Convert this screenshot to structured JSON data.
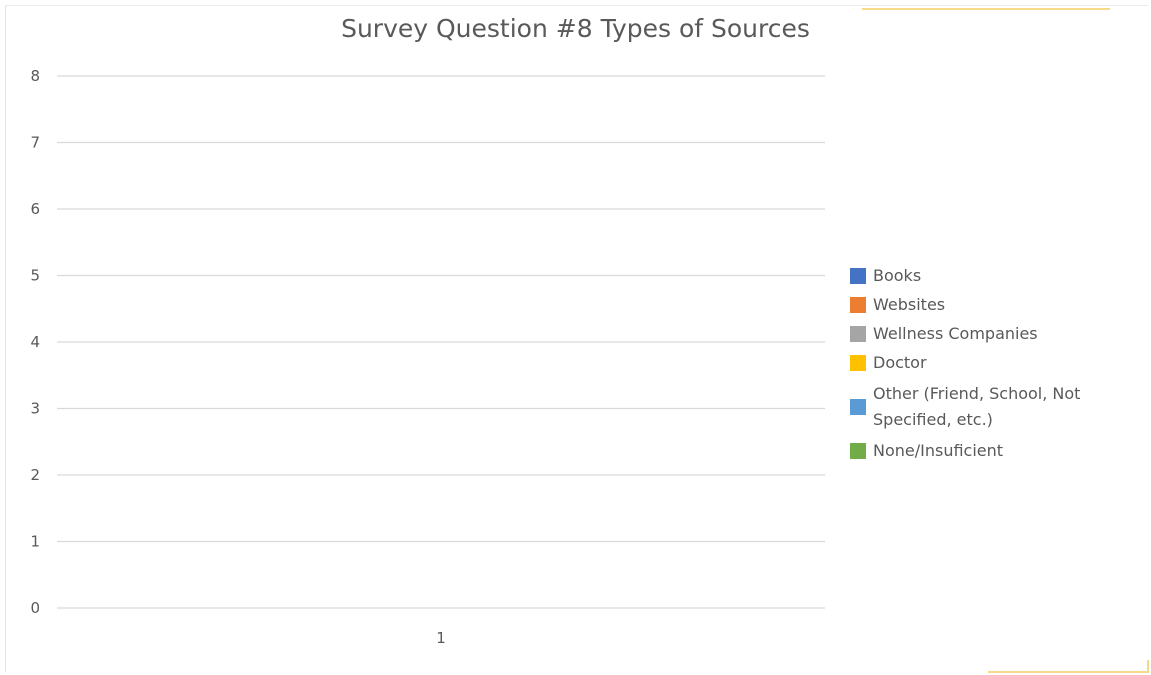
{
  "chart_data": {
    "type": "bar",
    "title": "Survey Question #8 Types of Sources",
    "categories": [
      "1"
    ],
    "series": [
      {
        "name": "Books",
        "values": [
          0
        ],
        "color": "#4472c4"
      },
      {
        "name": "Websites",
        "values": [
          0
        ],
        "color": "#ed7d31"
      },
      {
        "name": "Wellness Companies",
        "values": [
          0
        ],
        "color": "#a5a5a5"
      },
      {
        "name": "Doctor",
        "values": [
          0
        ],
        "color": "#ffc000"
      },
      {
        "name": "Other (Friend, School, Not Specified, etc.)",
        "values": [
          0
        ],
        "color": "#5b9bd5"
      },
      {
        "name": "None/Insuficient",
        "values": [
          0
        ],
        "color": "#70ad47"
      }
    ],
    "ylim": [
      0,
      8
    ],
    "yticks": [
      "0",
      "1",
      "2",
      "3",
      "4",
      "5",
      "6",
      "7",
      "8"
    ],
    "grid": true,
    "legend_position": "right"
  }
}
